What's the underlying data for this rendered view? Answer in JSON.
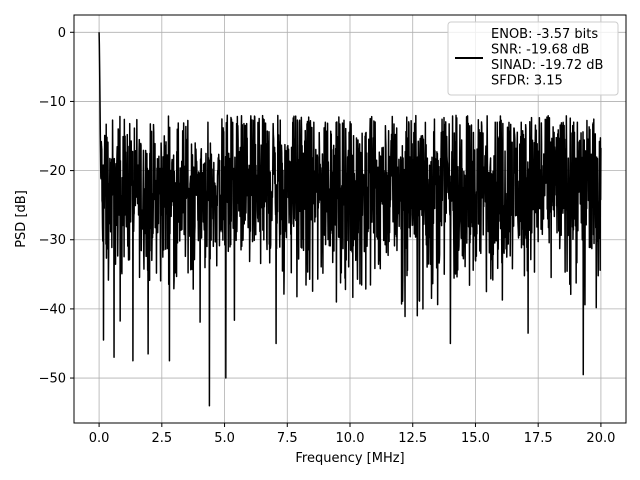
{
  "chart_data": {
    "type": "line",
    "xlabel": "Frequency [MHz]",
    "ylabel": "PSD [dB]",
    "xlim": [
      -1.0,
      21.0
    ],
    "ylim": [
      -56.5,
      2.5
    ],
    "xticks": [
      0.0,
      2.5,
      5.0,
      7.5,
      10.0,
      12.5,
      15.0,
      17.5,
      20.0
    ],
    "xtick_labels": [
      "0.0",
      "2.5",
      "5.0",
      "7.5",
      "10.0",
      "12.5",
      "15.0",
      "17.5",
      "20.0"
    ],
    "yticks": [
      0,
      -10,
      -20,
      -30,
      -40,
      -50
    ],
    "ytick_labels": [
      "0",
      "−10",
      "−20",
      "−30",
      "−40",
      "−50"
    ],
    "grid": true,
    "legend_position": "top-right",
    "series": [
      {
        "name": "ENOB: -3.57 bits\nSNR: -19.68 dB\nSINAD: -19.72 dB\nSFDR: 3.15",
        "color": "#000000",
        "description": "Noisy power spectral density, about 2048 bins from 0 to 20 MHz; peak 0 dB at DC, band mostly between about -13 and -33 dB, deep nulls down to about -54 dB near 4.4 MHz",
        "x_range": [
          0.0,
          20.0
        ],
        "peak": {
          "x": 0.0,
          "y": 0.0
        },
        "notable_minima": [
          {
            "x": 0.18,
            "y": -44.5
          },
          {
            "x": 0.6,
            "y": -47.0
          },
          {
            "x": 1.35,
            "y": -47.5
          },
          {
            "x": 1.95,
            "y": -46.5
          },
          {
            "x": 2.8,
            "y": -47.5
          },
          {
            "x": 4.4,
            "y": -54.0
          },
          {
            "x": 5.05,
            "y": -50.0
          },
          {
            "x": 7.05,
            "y": -45.0
          },
          {
            "x": 14.0,
            "y": -45.0
          },
          {
            "x": 17.1,
            "y": -43.5
          },
          {
            "x": 19.3,
            "y": -49.5
          }
        ],
        "typical_max": -13.0,
        "typical_min": -33.0,
        "upper_envelope": [
          [
            0.0,
            0.0
          ],
          [
            0.1,
            -8.5
          ],
          [
            0.4,
            -14.5
          ],
          [
            1.0,
            -14.0
          ],
          [
            2.5,
            -13.5
          ],
          [
            5.0,
            -12.5
          ],
          [
            5.6,
            -11.5
          ],
          [
            7.5,
            -11.0
          ],
          [
            10.0,
            -11.5
          ],
          [
            12.5,
            -11.0
          ],
          [
            15.0,
            -11.5
          ],
          [
            17.5,
            -11.5
          ],
          [
            20.0,
            -11.5
          ]
        ]
      }
    ]
  }
}
